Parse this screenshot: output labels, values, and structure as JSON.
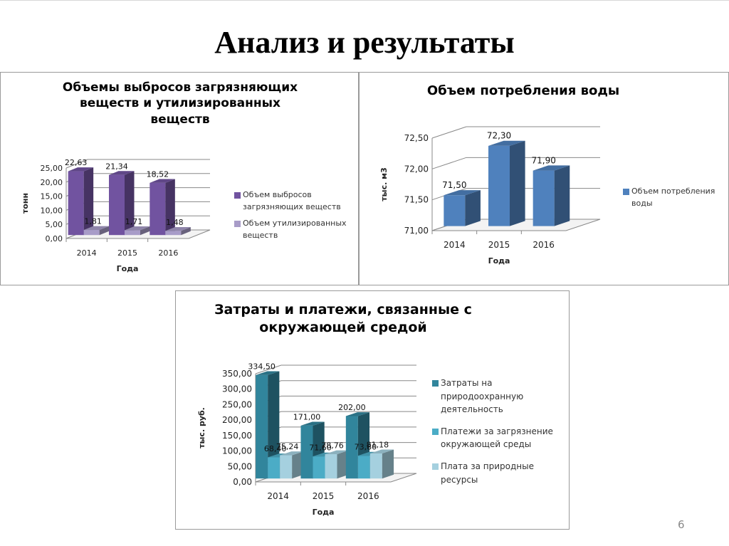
{
  "slide": {
    "title": "Анализ и результаты",
    "page_number": "6"
  },
  "chart_data": [
    {
      "type": "bar",
      "title": "Объемы выбросов загрязняющих веществ и утилизированных веществ",
      "title_lines": [
        "Объемы выбросов загрязняющих",
        "веществ и утилизированных",
        "веществ"
      ],
      "xlabel": "Года",
      "ylabel": "тонн",
      "categories": [
        "2014",
        "2015",
        "2016"
      ],
      "yticks": [
        "0,00",
        "5,00",
        "10,00",
        "15,00",
        "20,00",
        "25,00"
      ],
      "ylim": [
        0,
        25
      ],
      "series": [
        {
          "name": "Объем выбросов загрязняющих веществ",
          "legend_lines": [
            "Объем выбросов",
            "загрязняющих веществ"
          ],
          "color": "#7153a0",
          "values": [
            22.63,
            21.34,
            18.52
          ],
          "labels": [
            "22,63",
            "21,34",
            "18,52"
          ]
        },
        {
          "name": "Объем утилизированных веществ",
          "legend_lines": [
            "Объем утилизированных",
            "веществ"
          ],
          "color": "#a89cc8",
          "values": [
            1.81,
            1.71,
            1.48
          ],
          "labels": [
            "1,81",
            "1,71",
            "1,48"
          ]
        }
      ],
      "grid": true,
      "legend_position": "right"
    },
    {
      "type": "bar",
      "title": "Объем потребления воды",
      "title_lines": [
        "Объем потребления воды"
      ],
      "xlabel": "Года",
      "ylabel": "тыс. м3",
      "categories": [
        "2014",
        "2015",
        "2016"
      ],
      "yticks": [
        "71,00",
        "71,50",
        "72,00",
        "72,50"
      ],
      "ylim": [
        71,
        72.5
      ],
      "series": [
        {
          "name": "Объем потребления воды",
          "legend_lines": [
            "Объем потребления",
            "воды"
          ],
          "color": "#4f81bd",
          "values": [
            71.5,
            72.3,
            71.9
          ],
          "labels": [
            "71,50",
            "72,30",
            "71,90"
          ]
        }
      ],
      "grid": true,
      "legend_position": "right"
    },
    {
      "type": "bar",
      "title": "Затраты и платежи, связанные с окружающей средой",
      "title_lines": [
        "Затраты и платежи, связанные с",
        "окружающей средой"
      ],
      "xlabel": "Года",
      "ylabel": "тыс. руб.",
      "categories": [
        "2014",
        "2015",
        "2016"
      ],
      "yticks": [
        "0,00",
        "50,00",
        "100,00",
        "150,00",
        "200,00",
        "250,00",
        "300,00",
        "350,00"
      ],
      "ylim": [
        0,
        350
      ],
      "series": [
        {
          "name": "Затраты на природоохранную деятельность",
          "legend_lines": [
            "Затраты на",
            "природоохранную",
            "деятельность"
          ],
          "color": "#31859c",
          "values": [
            334.5,
            171.0,
            202.0
          ],
          "labels": [
            "334,50",
            "171,00",
            "202,00"
          ]
        },
        {
          "name": "Платежи за загрязнение окружающей среды",
          "legend_lines": [
            "Платежи за загрязнение",
            "окружающей среды"
          ],
          "color": "#4bacc6",
          "values": [
            68.4,
            71.6,
            73.8
          ],
          "labels": [
            "68,40",
            "71,60",
            "73,80"
          ]
        },
        {
          "name": "Плата за природные ресурсы",
          "legend_lines": [
            "Плата за природные",
            "ресурсы"
          ],
          "color": "#a5d0df",
          "values": [
            75.24,
            78.76,
            81.18
          ],
          "labels": [
            "75,24",
            "78,76",
            "81,18"
          ]
        }
      ],
      "grid": true,
      "legend_position": "right"
    }
  ]
}
